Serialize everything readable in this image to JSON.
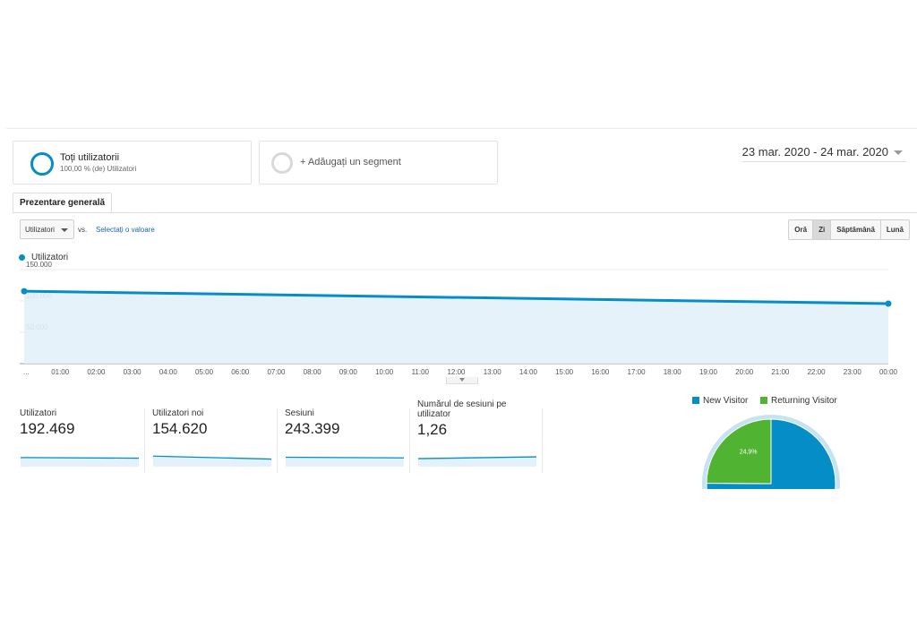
{
  "segments": [
    {
      "title": "Toți utilizatorii",
      "subtitle": "100,00 % (de) Utilizatori"
    },
    {
      "add_label": "+ Adăugați un segment"
    }
  ],
  "date_range": "23 mar. 2020 - 24 mar. 2020",
  "tab": {
    "label": "Prezentare generală"
  },
  "controls": {
    "metric": "Utilizatori",
    "vs": "vs.",
    "select_value": "Selectați o valoare",
    "granularity": [
      "Oră",
      "Zi",
      "Săptămână",
      "Lună"
    ],
    "granularity_active": "Zi"
  },
  "colors": {
    "accent": "#058dc7",
    "returning": "#50b432",
    "area": "#e3f1fa"
  },
  "chart_data": {
    "type": "area",
    "series": [
      {
        "name": "Utilizatori",
        "values": [
          115500,
          95700
        ]
      }
    ],
    "x_points": [
      "start",
      "00:00"
    ],
    "x_ticks": [
      "...",
      "01:00",
      "02:00",
      "03:00",
      "04:00",
      "05:00",
      "06:00",
      "07:00",
      "08:00",
      "09:00",
      "10:00",
      "11:00",
      "12:00",
      "13:00",
      "14:00",
      "15:00",
      "16:00",
      "17:00",
      "18:00",
      "19:00",
      "20:00",
      "21:00",
      "22:00",
      "23:00",
      "00:00"
    ],
    "y_ticks": [
      {
        "value": 150000,
        "label": "150.000"
      },
      {
        "value": 100000,
        "label": "100.000"
      },
      {
        "value": 50000,
        "label": "50.000"
      }
    ],
    "ylim": [
      0,
      150000
    ],
    "grid": true
  },
  "kpis": [
    {
      "label": "Utilizatori",
      "value": "192.469",
      "trend": [
        0.62,
        0.55
      ]
    },
    {
      "label": "Utilizatori noi",
      "value": "154.620",
      "trend": [
        0.78,
        0.45
      ]
    },
    {
      "label": "Sesiuni",
      "value": "243.399",
      "trend": [
        0.66,
        0.58
      ]
    },
    {
      "label": "Numărul de sesiuni pe utilizator",
      "value": "1,26",
      "trend": [
        0.5,
        0.7
      ]
    }
  ],
  "pie": {
    "legend": [
      {
        "name": "New Visitor",
        "color": "#058dc7"
      },
      {
        "name": "Returning Visitor",
        "color": "#50b432"
      }
    ],
    "slices": [
      {
        "name": "New Visitor",
        "percent": 75.1
      },
      {
        "name": "Returning Visitor",
        "percent": 24.9,
        "label": "24,9%"
      }
    ]
  }
}
